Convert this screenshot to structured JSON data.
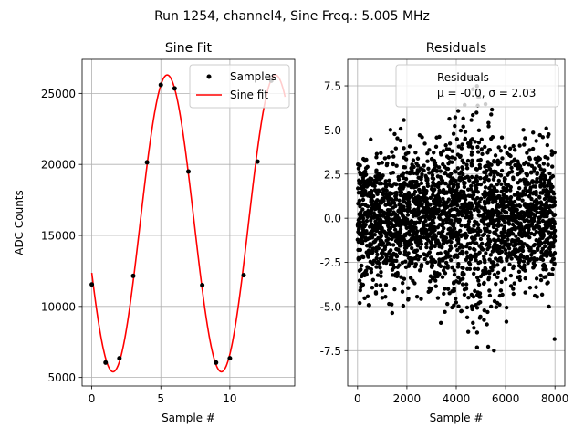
{
  "suptitle": "Run 1254, channel4, Sine Freq.: 5.005 MHz",
  "chart_data": [
    {
      "type": "scatter+line",
      "title": "Sine Fit",
      "xlabel": "Sample #",
      "ylabel": "ADC Counts",
      "xlim": [
        -0.7,
        14.7
      ],
      "ylim": [
        4400,
        27400
      ],
      "xticks": [
        0,
        5,
        10
      ],
      "yticks": [
        5000,
        10000,
        15000,
        20000,
        25000
      ],
      "grid": true,
      "legend_position": "top-right",
      "series": [
        {
          "name": "Samples",
          "kind": "scatter",
          "color": "#000000",
          "x": [
            0,
            1,
            2,
            3,
            4,
            5,
            6,
            7,
            8,
            9,
            10,
            11,
            12,
            13
          ],
          "y": [
            11550,
            6050,
            6350,
            12150,
            20150,
            25600,
            25350,
            19500,
            11500,
            6050,
            6350,
            12200,
            20200,
            25900
          ]
        },
        {
          "name": "Sine fit",
          "kind": "line",
          "color": "#ff0000",
          "fit": {
            "offset": 15850,
            "amplitude": 10450,
            "period": 7.85,
            "phase_x": 3.5,
            "x_range": [
              0,
              14
            ]
          }
        }
      ]
    },
    {
      "type": "scatter",
      "title": "Residuals",
      "xlabel": "Sample #",
      "ylabel": "",
      "xlim": [
        -400,
        8400
      ],
      "ylim": [
        -9.5,
        9.0
      ],
      "xticks": [
        0,
        2000,
        4000,
        6000,
        8000
      ],
      "yticks": [
        -7.5,
        -5.0,
        -2.5,
        0.0,
        2.5,
        5.0,
        7.5
      ],
      "grid": true,
      "legend_position": "top-right",
      "legend": {
        "label": "Residuals",
        "stats": "μ = -0.0, σ = 2.03"
      },
      "series": [
        {
          "name": "Residuals",
          "color": "#000000",
          "x_range": [
            0,
            8000
          ],
          "mean": 0.0,
          "std": 2.03,
          "n_points": 2600
        }
      ]
    }
  ]
}
